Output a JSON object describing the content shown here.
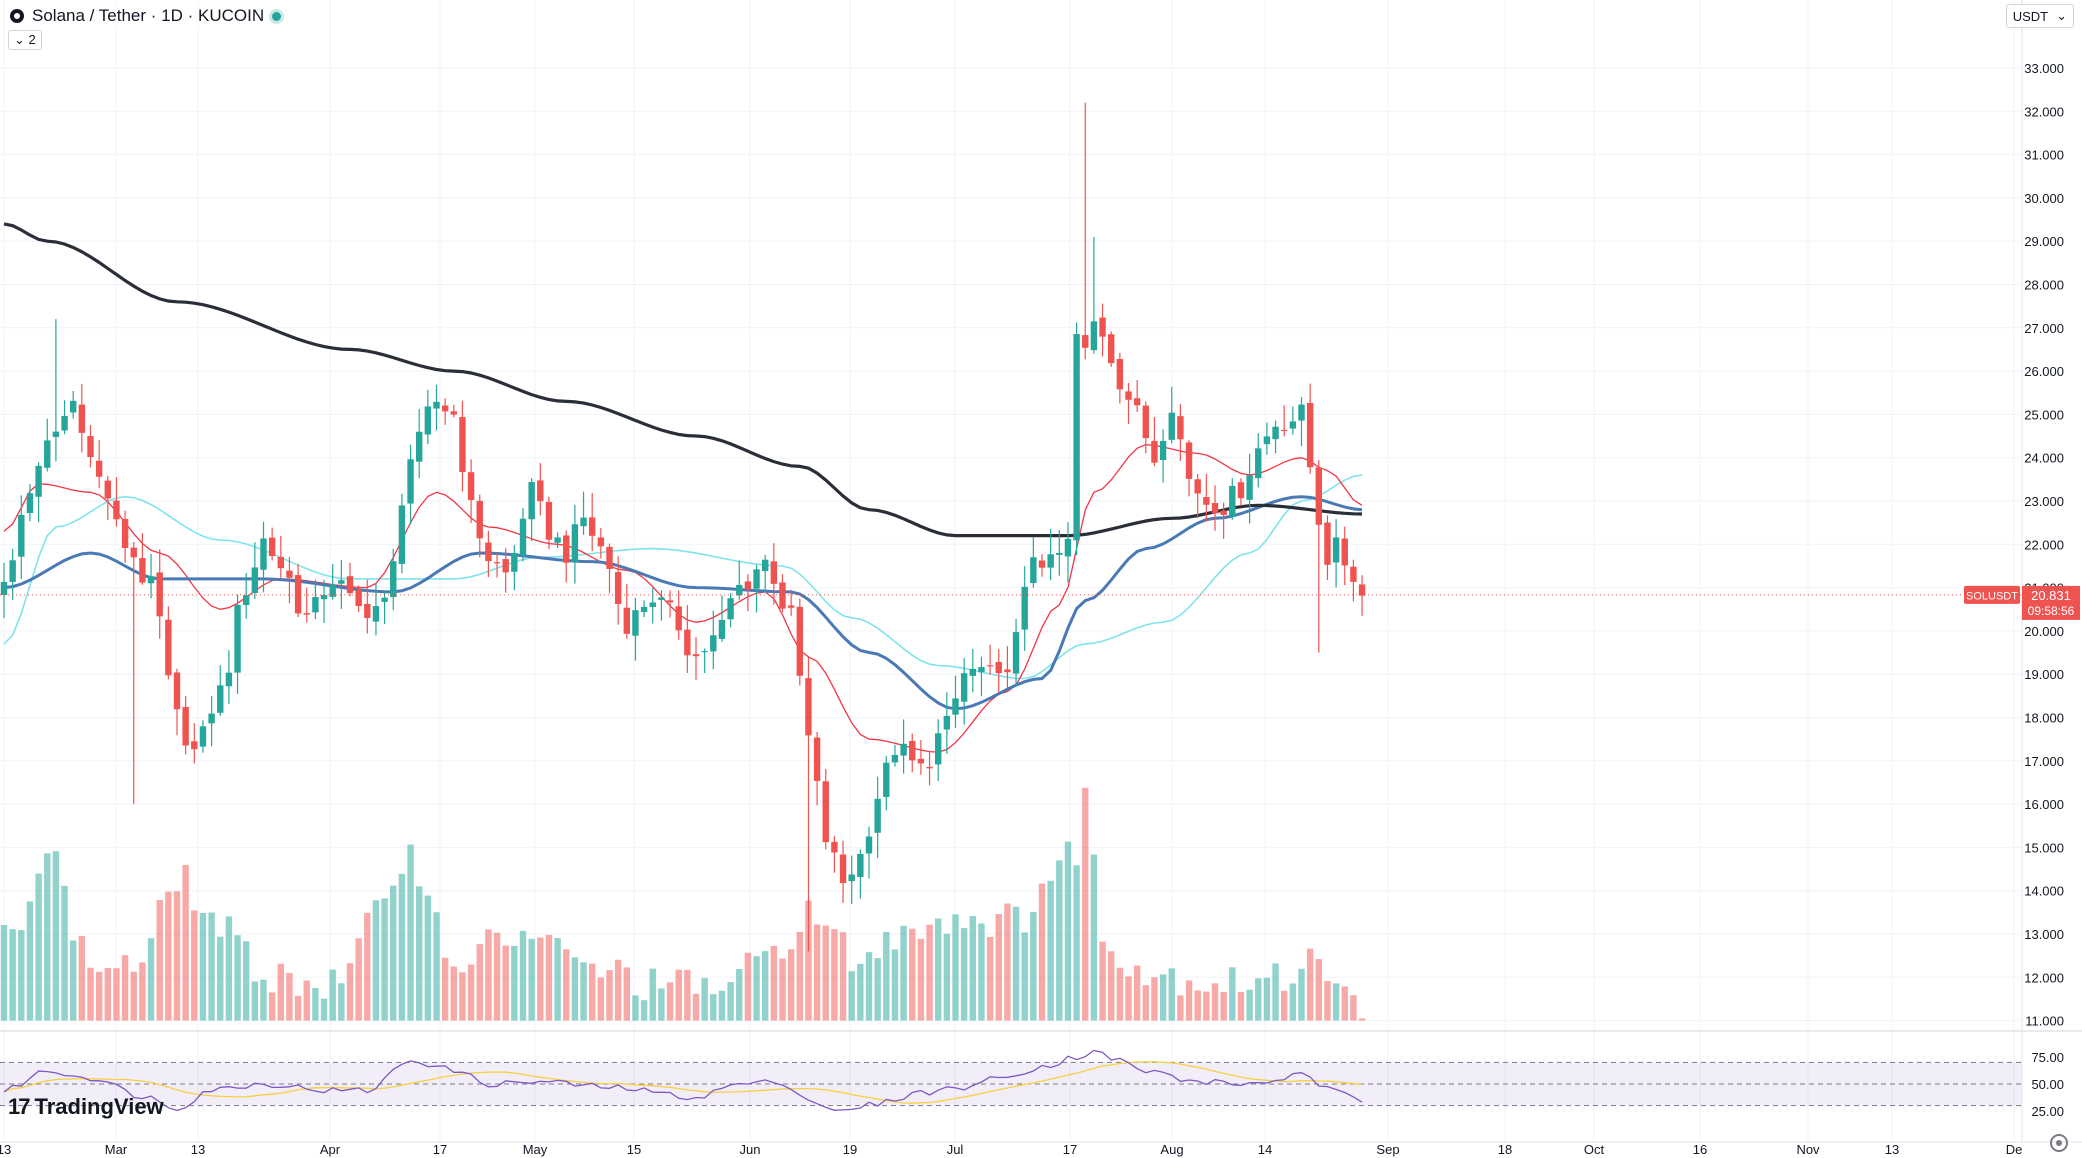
{
  "header": {
    "symbol": "Solana / Tether · 1D · KUCOIN",
    "indicator_count": "2"
  },
  "currency": {
    "label": "USDT",
    "chevron": "chevron-down-icon"
  },
  "branding": {
    "logo_mark": "17",
    "name": "TradingView"
  },
  "price_tag": {
    "symbol": "SOLUSDT",
    "price": "20.831",
    "countdown": "09:58:56"
  },
  "chart_data": {
    "type": "candlestick",
    "price_axis": {
      "min": 11,
      "max": 33,
      "ticks": [
        "33.000",
        "32.000",
        "31.000",
        "30.000",
        "29.000",
        "28.000",
        "27.000",
        "26.000",
        "25.000",
        "24.000",
        "23.000",
        "22.000",
        "21.000",
        "20.000",
        "19.000",
        "18.000",
        "17.000",
        "16.000",
        "15.000",
        "14.000",
        "13.000",
        "12.000",
        "11.000"
      ]
    },
    "rsi_axis": {
      "ticks": [
        "75.00",
        "50.00",
        "25.00"
      ],
      "band": [
        30,
        70
      ]
    },
    "time_axis_labels": [
      "13",
      "Mar",
      "13",
      "Apr",
      "17",
      "May",
      "15",
      "Jun",
      "19",
      "Jul",
      "17",
      "Aug",
      "14",
      "Sep",
      "18",
      "Oct",
      "16",
      "Nov",
      "13",
      "De"
    ],
    "last_price": 20.831,
    "colors": {
      "up": "#26a69a",
      "down": "#ef5350",
      "ma_slow": "#2a2e39",
      "ma_mid": "#4a79b5",
      "ma_fast": "#f23645",
      "ma_cyan": "#7fe4ea",
      "rsi": "#7e57c2",
      "rsi_ma": "#f5d142"
    },
    "anchors": {
      "close": [
        [
          0,
          21.0
        ],
        [
          3,
          23.3
        ],
        [
          6,
          24.6
        ],
        [
          8,
          25.3
        ],
        [
          11,
          23.5
        ],
        [
          14,
          22.0
        ],
        [
          17,
          21.0
        ],
        [
          20,
          18.0
        ],
        [
          22,
          17.2
        ],
        [
          25,
          18.6
        ],
        [
          28,
          21.0
        ],
        [
          30,
          22.1
        ],
        [
          32,
          21.5
        ],
        [
          35,
          20.3
        ],
        [
          38,
          21.2
        ],
        [
          41,
          20.5
        ],
        [
          44,
          20.6
        ],
        [
          47,
          24.0
        ],
        [
          50,
          25.3
        ],
        [
          52,
          25.0
        ],
        [
          54,
          22.8
        ],
        [
          56,
          21.7
        ],
        [
          58,
          21.3
        ],
        [
          61,
          23.2
        ],
        [
          63,
          22.3
        ],
        [
          65,
          21.8
        ],
        [
          67,
          22.6
        ],
        [
          69,
          21.9
        ],
        [
          72,
          20.2
        ],
        [
          75,
          20.8
        ],
        [
          77,
          20.4
        ],
        [
          80,
          19.4
        ],
        [
          82,
          19.8
        ],
        [
          85,
          21.0
        ],
        [
          88,
          21.6
        ],
        [
          91,
          20.3
        ],
        [
          93,
          17.5
        ],
        [
          95,
          15.2
        ],
        [
          97,
          14.2
        ],
        [
          99,
          14.8
        ],
        [
          101,
          16.2
        ],
        [
          103,
          17.3
        ],
        [
          106,
          16.8
        ],
        [
          109,
          17.8
        ],
        [
          111,
          19.0
        ],
        [
          113,
          19.1
        ],
        [
          115,
          18.8
        ],
        [
          117,
          19.8
        ],
        [
          119,
          21.8
        ],
        [
          121,
          21.5
        ],
        [
          123,
          22.0
        ],
        [
          124,
          26.8
        ],
        [
          125,
          26.4
        ],
        [
          126,
          27.1
        ],
        [
          127,
          26.9
        ],
        [
          129,
          25.8
        ],
        [
          131,
          25.0
        ],
        [
          133,
          24.0
        ],
        [
          135,
          25.3
        ],
        [
          137,
          23.5
        ],
        [
          139,
          23.0
        ],
        [
          141,
          22.9
        ],
        [
          143,
          23.3
        ],
        [
          145,
          24.2
        ],
        [
          147,
          24.8
        ],
        [
          149,
          24.9
        ],
        [
          150,
          25.0
        ],
        [
          151,
          23.8
        ],
        [
          152,
          22.6
        ],
        [
          153,
          21.7
        ],
        [
          154,
          21.9
        ],
        [
          156,
          21.3
        ],
        [
          157,
          20.8
        ]
      ],
      "ma_slow": [
        [
          0,
          29.4
        ],
        [
          5,
          29.0
        ],
        [
          20,
          27.6
        ],
        [
          40,
          26.5
        ],
        [
          52,
          26.0
        ],
        [
          65,
          25.3
        ],
        [
          80,
          24.5
        ],
        [
          92,
          23.8
        ],
        [
          100,
          22.8
        ],
        [
          110,
          22.2
        ],
        [
          123,
          22.2
        ],
        [
          135,
          22.6
        ],
        [
          145,
          22.9
        ],
        [
          157,
          22.7
        ]
      ],
      "ma_mid": [
        [
          0,
          21.0
        ],
        [
          10,
          21.8
        ],
        [
          18,
          21.2
        ],
        [
          30,
          21.2
        ],
        [
          45,
          20.9
        ],
        [
          55,
          21.8
        ],
        [
          68,
          21.6
        ],
        [
          80,
          21.0
        ],
        [
          91,
          20.9
        ],
        [
          100,
          19.5
        ],
        [
          110,
          18.2
        ],
        [
          120,
          18.9
        ],
        [
          125,
          20.7
        ],
        [
          132,
          21.9
        ],
        [
          140,
          22.6
        ],
        [
          150,
          23.1
        ],
        [
          157,
          22.8
        ]
      ],
      "ma_fast": [
        [
          0,
          22.3
        ],
        [
          4,
          23.4
        ],
        [
          10,
          23.2
        ],
        [
          18,
          21.8
        ],
        [
          25,
          20.5
        ],
        [
          32,
          21.2
        ],
        [
          42,
          21.0
        ],
        [
          50,
          23.2
        ],
        [
          56,
          22.4
        ],
        [
          64,
          22.0
        ],
        [
          72,
          21.4
        ],
        [
          80,
          20.2
        ],
        [
          88,
          20.9
        ],
        [
          93,
          19.4
        ],
        [
          100,
          17.5
        ],
        [
          108,
          17.2
        ],
        [
          116,
          18.6
        ],
        [
          122,
          20.6
        ],
        [
          126,
          23.2
        ],
        [
          132,
          24.3
        ],
        [
          138,
          24.1
        ],
        [
          144,
          23.6
        ],
        [
          150,
          24.0
        ],
        [
          153,
          23.7
        ],
        [
          157,
          22.9
        ]
      ],
      "ma_cyan": [
        [
          0,
          19.7
        ],
        [
          6,
          22.4
        ],
        [
          14,
          23.1
        ],
        [
          25,
          22.1
        ],
        [
          40,
          21.2
        ],
        [
          52,
          21.2
        ],
        [
          62,
          21.7
        ],
        [
          75,
          21.9
        ],
        [
          90,
          21.5
        ],
        [
          98,
          20.3
        ],
        [
          108,
          19.2
        ],
        [
          118,
          18.9
        ],
        [
          125,
          19.7
        ],
        [
          134,
          20.2
        ],
        [
          144,
          21.8
        ],
        [
          150,
          23.0
        ],
        [
          157,
          23.6
        ]
      ],
      "volume": [
        [
          0,
          12.8
        ],
        [
          5,
          14.9
        ],
        [
          10,
          12.3
        ],
        [
          16,
          12.3
        ],
        [
          20,
          14.4
        ],
        [
          24,
          13.3
        ],
        [
          30,
          12.1
        ],
        [
          38,
          11.8
        ],
        [
          47,
          14.8
        ],
        [
          52,
          12.4
        ],
        [
          60,
          13.0
        ],
        [
          68,
          12.2
        ],
        [
          76,
          11.8
        ],
        [
          84,
          11.8
        ],
        [
          88,
          12.5
        ],
        [
          93,
          13.4
        ],
        [
          99,
          12.4
        ],
        [
          106,
          13.3
        ],
        [
          111,
          13.4
        ],
        [
          117,
          13.3
        ],
        [
          121,
          14.3
        ],
        [
          124,
          15.0
        ],
        [
          125,
          16.4
        ],
        [
          127,
          12.8
        ],
        [
          133,
          12.1
        ],
        [
          140,
          11.9
        ],
        [
          148,
          11.9
        ],
        [
          150,
          12.5
        ],
        [
          152,
          12.7
        ],
        [
          154,
          11.6
        ],
        [
          157,
          11.3
        ]
      ],
      "rsi": [
        [
          0,
          44
        ],
        [
          5,
          62
        ],
        [
          10,
          56
        ],
        [
          16,
          39
        ],
        [
          20,
          28
        ],
        [
          24,
          45
        ],
        [
          30,
          50
        ],
        [
          38,
          44
        ],
        [
          42,
          44
        ],
        [
          47,
          72
        ],
        [
          52,
          63
        ],
        [
          56,
          50
        ],
        [
          62,
          52
        ],
        [
          70,
          47
        ],
        [
          80,
          38
        ],
        [
          85,
          50
        ],
        [
          90,
          52
        ],
        [
          93,
          35
        ],
        [
          97,
          24
        ],
        [
          101,
          32
        ],
        [
          106,
          42
        ],
        [
          110,
          46
        ],
        [
          115,
          55
        ],
        [
          120,
          66
        ],
        [
          124,
          75
        ],
        [
          126,
          80
        ],
        [
          128,
          74
        ],
        [
          132,
          62
        ],
        [
          138,
          52
        ],
        [
          144,
          50
        ],
        [
          150,
          58
        ],
        [
          152,
          50
        ],
        [
          154,
          42
        ],
        [
          157,
          35
        ]
      ]
    }
  }
}
